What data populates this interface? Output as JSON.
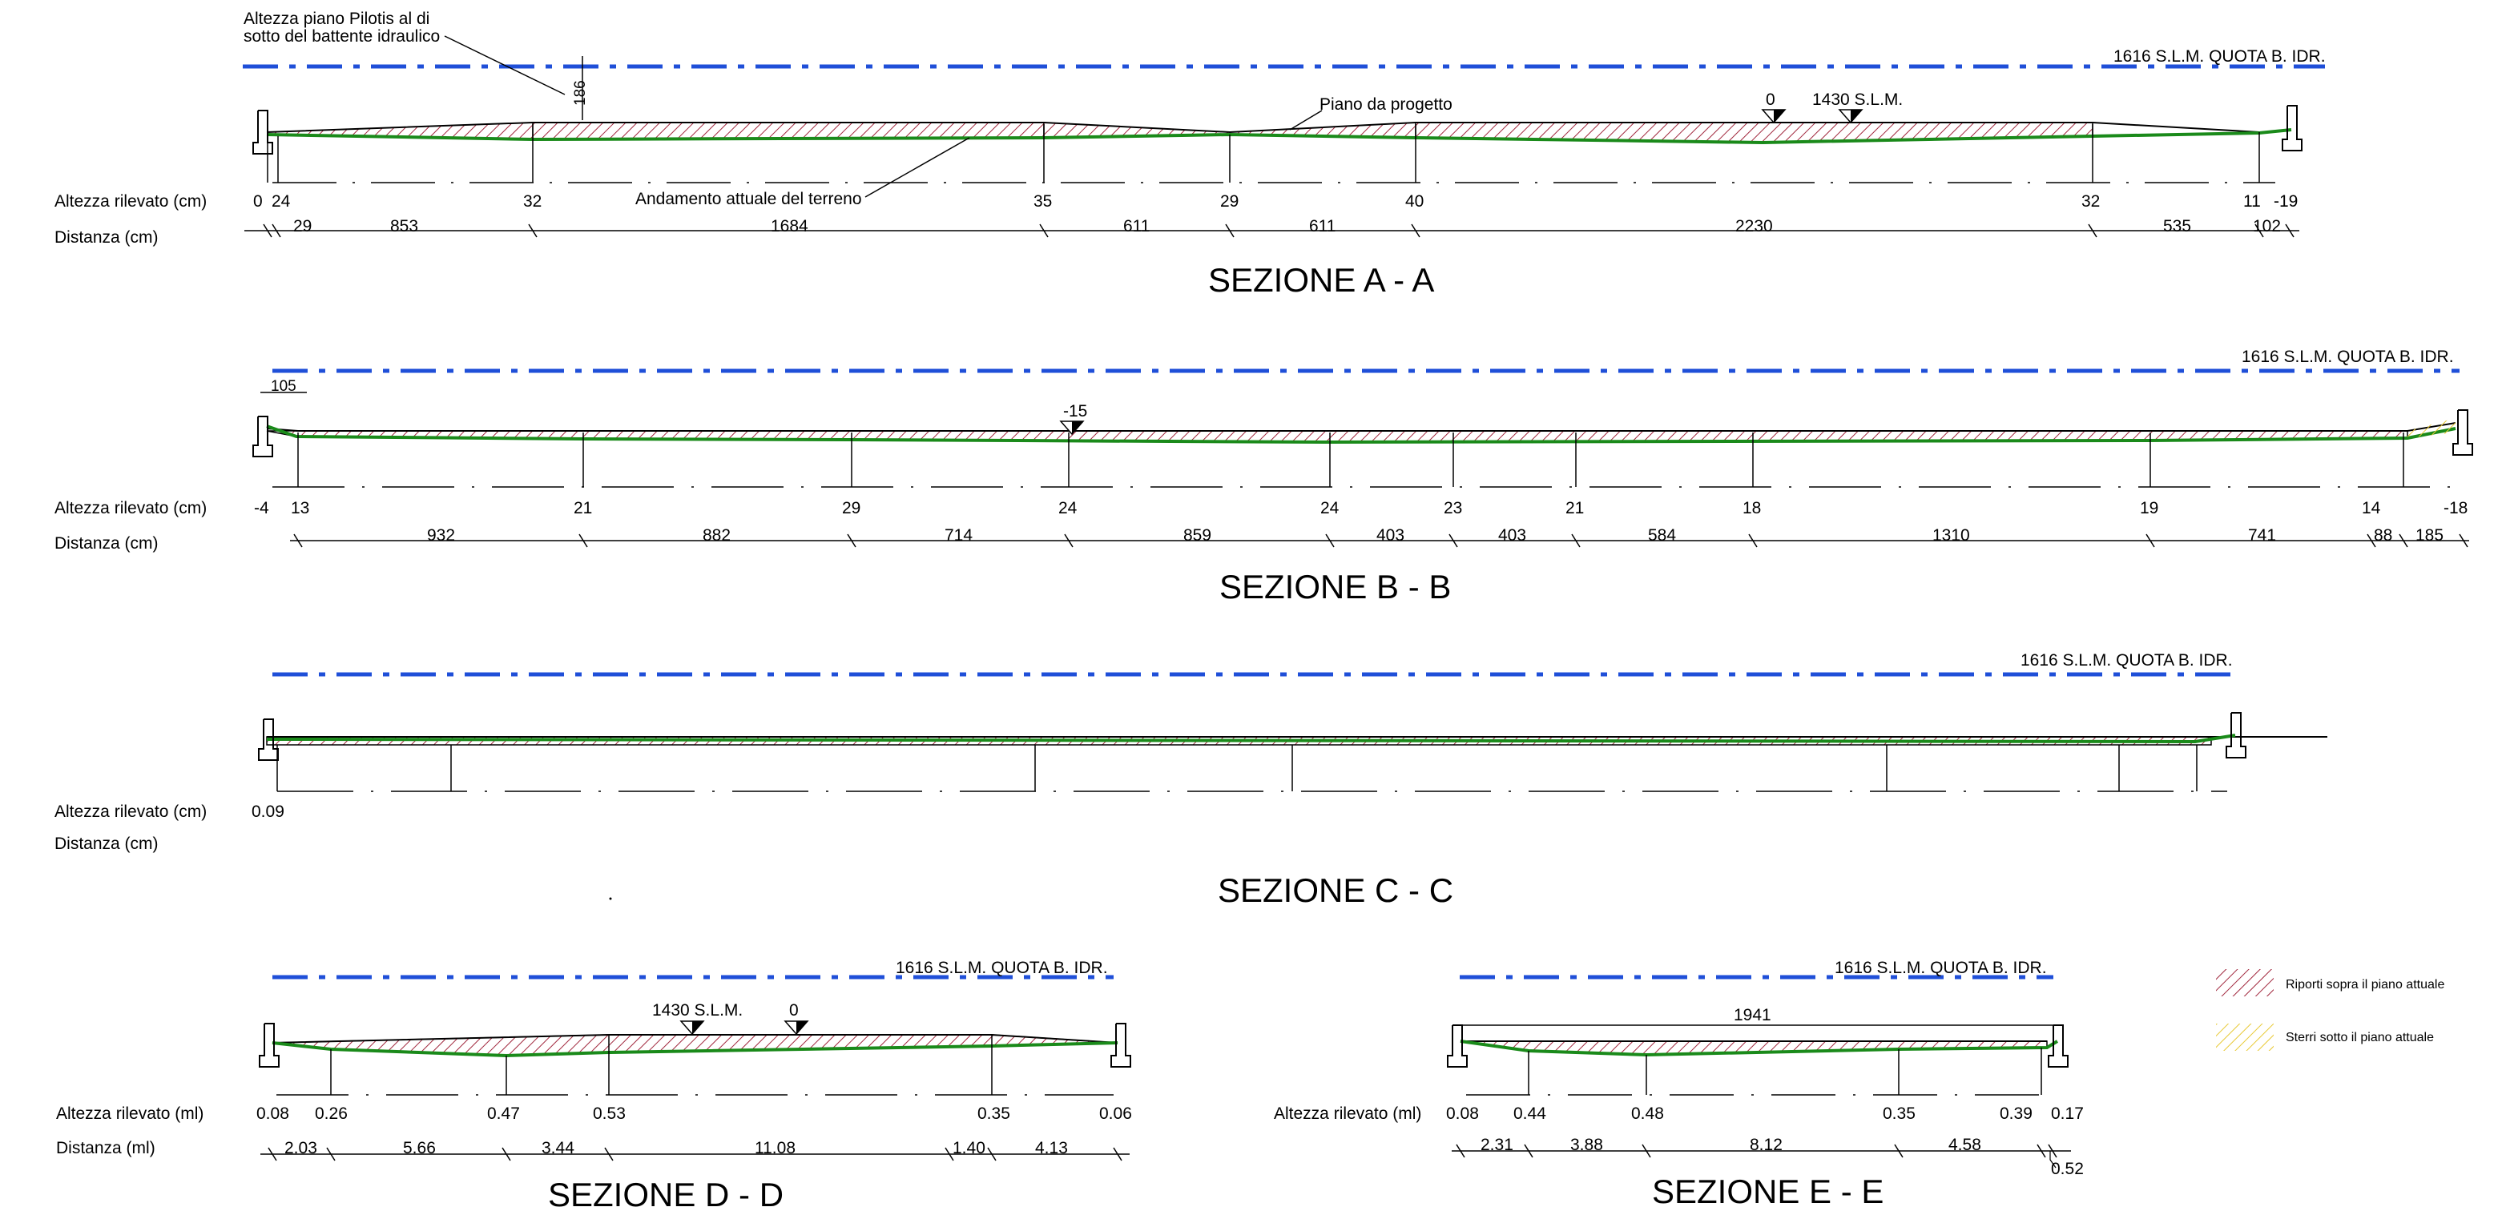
{
  "labels": {
    "altezza_cm": "Altezza rilevato (cm)",
    "distanza_cm": "Distanza (cm)",
    "altezza_ml": "Altezza rilevato (ml)",
    "distanza_ml": "Distanza (ml)",
    "quota": "1616 S.L.M. QUOTA B. IDR.",
    "slm1430": "1430 S.L.M."
  },
  "annotations": {
    "pilotis": [
      "Altezza piano Pilotis al di",
      "sotto del battente idraulico"
    ],
    "pilotis_value": "186",
    "piano_progetto": "Piano da progetto",
    "andamento": "Andamento attuale del terreno",
    "zero": "0",
    "b_level": "-15",
    "b_top": "105",
    "e_span": "1941",
    "e_extra": "0.52"
  },
  "legend": {
    "riporti": "Riporti sopra il piano attuale",
    "sterri": "Sterri sotto il piano attuale",
    "riporti_color": "#a0263c",
    "sterri_color": "#e8c832"
  },
  "colors": {
    "water_line": "#1f4fd8",
    "terrain": "#1a8a1a"
  },
  "sections": [
    {
      "title": "SEZIONE A - A",
      "heights": [
        "0",
        "24",
        "32",
        "35",
        "29",
        "40",
        "32",
        "11",
        "-19"
      ],
      "distances": [
        "29",
        "853",
        "1684",
        "611",
        "611",
        "2230",
        "535",
        "102"
      ]
    },
    {
      "title": "SEZIONE B - B",
      "heights": [
        "-4",
        "13",
        "21",
        "29",
        "24",
        "24",
        "23",
        "21",
        "18",
        "19",
        "14",
        "-18"
      ],
      "distances": [
        "932",
        "882",
        "714",
        "859",
        "403",
        "403",
        "584",
        "1310",
        "741",
        "88",
        "185"
      ]
    },
    {
      "title": "SEZIONE C - C",
      "heights": [
        "0.09"
      ],
      "distances": []
    },
    {
      "title": "SEZIONE D - D",
      "heights": [
        "0.08",
        "0.26",
        "0.47",
        "0.53",
        "0.35",
        "0.06"
      ],
      "distances": [
        "2.03",
        "5.66",
        "3.44",
        "11.08",
        "1.40",
        "4.13"
      ]
    },
    {
      "title": "SEZIONE E - E",
      "heights": [
        "0.08",
        "0.44",
        "0.48",
        "0.35",
        "0.39",
        "0.17"
      ],
      "distances": [
        "2.31",
        "3.88",
        "8.12",
        "4.58"
      ]
    }
  ]
}
